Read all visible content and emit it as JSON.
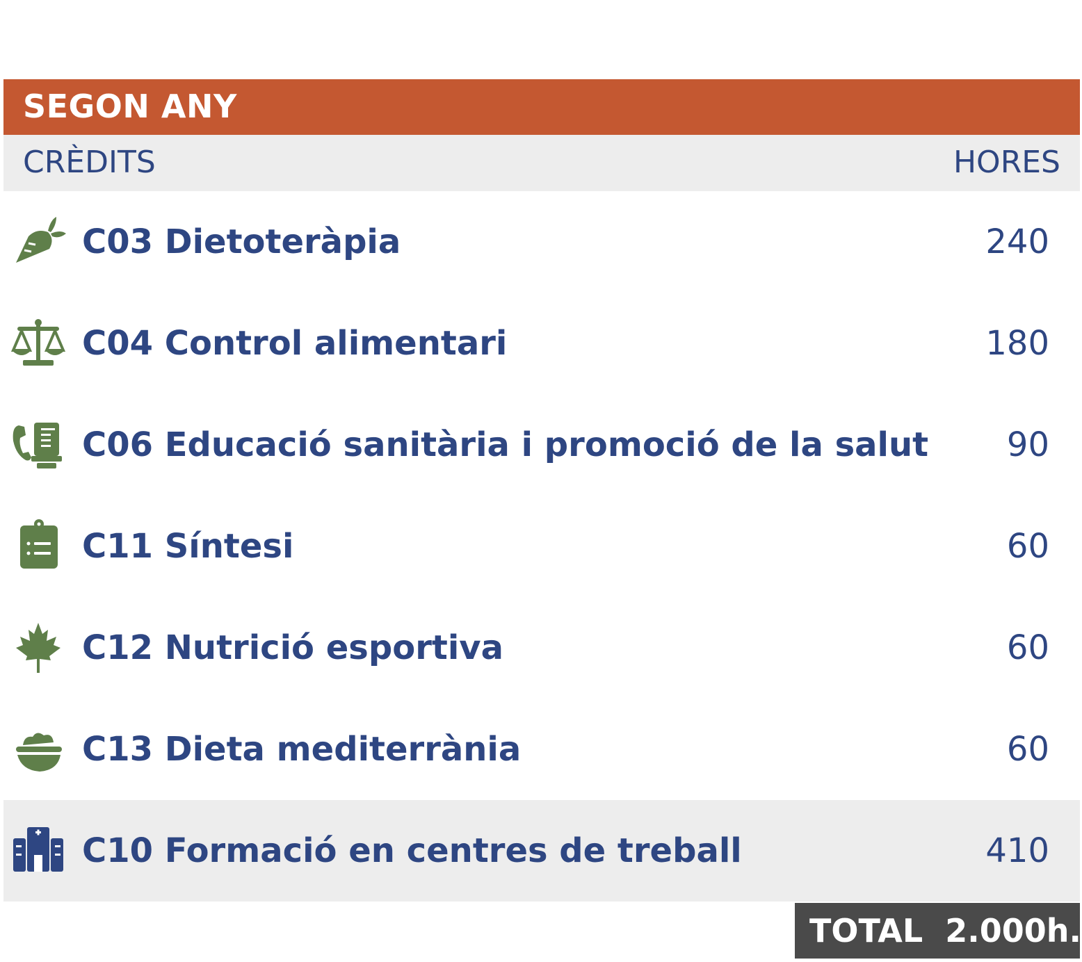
{
  "header": {
    "title": "SEGON ANY",
    "color": "#c45831"
  },
  "columns": {
    "left": "CRÈDITS",
    "right": "HORES"
  },
  "rows": [
    {
      "label": "C03 Dietoteràpia",
      "hours": "240",
      "icon": "carrot-icon"
    },
    {
      "label": "C04 Control alimentari",
      "hours": "180",
      "icon": "scale-balance-icon"
    },
    {
      "label": "C06 Educació sanitària i promoció de la salut",
      "hours": "90",
      "icon": "phone-fax-icon"
    },
    {
      "label": "C11 Síntesi",
      "hours": "60",
      "icon": "clipboard-list-icon"
    },
    {
      "label": "C12 Nutrició esportiva",
      "hours": "60",
      "icon": "maple-leaf-icon"
    },
    {
      "label": "C13 Dieta mediterrània",
      "hours": "60",
      "icon": "bowl-food-icon"
    },
    {
      "label": "C10 Formació en centres de treball",
      "hours": "410",
      "icon": "hospital-icon"
    }
  ],
  "total": {
    "label": "TOTAL  2.000h."
  },
  "colors": {
    "text": "#2e4682",
    "icon_green": "#5f7f4a",
    "icon_blue": "#2e4682",
    "row_alt": "#ededed",
    "total_bg": "#4a4a4a"
  }
}
